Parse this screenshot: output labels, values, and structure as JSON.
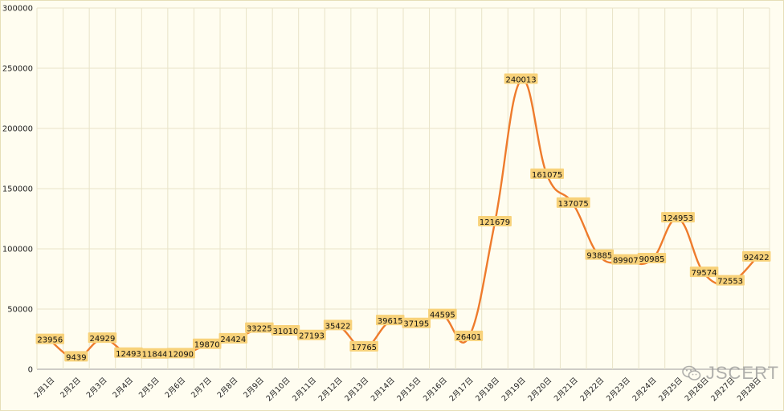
{
  "chart_data": {
    "type": "line",
    "title": "",
    "xlabel": "",
    "ylabel": "",
    "categories": [
      "2月1日",
      "2月2日",
      "2月3日",
      "2月4日",
      "2月5日",
      "2月6日",
      "2月7日",
      "2月8日",
      "2月9日",
      "2月10日",
      "2月11日",
      "2月12日",
      "2月13日",
      "2月14日",
      "2月15日",
      "2月16日",
      "2月17日",
      "2月18日",
      "2月19日",
      "2月20日",
      "2月21日",
      "2月22日",
      "2月23日",
      "2月24日",
      "2月25日",
      "2月26日",
      "2月27日",
      "2月28日"
    ],
    "series": [
      {
        "values": [
          23956,
          9439,
          24929,
          12493,
          11844,
          12090,
          19870,
          24424,
          33225,
          31010,
          27193,
          35422,
          17765,
          39615,
          37195,
          44595,
          26401,
          121679,
          240013,
          161075,
          137075,
          93885,
          89907,
          90985,
          124953,
          79574,
          72553,
          92422
        ],
        "color": "#ee7b2c"
      }
    ],
    "ylim": [
      0,
      300000
    ],
    "yticks": [
      0,
      50000,
      100000,
      150000,
      200000,
      250000,
      300000
    ],
    "grid": true,
    "legend": "none",
    "smooth": true,
    "data_labels": true,
    "colors": {
      "background": "#fffdf0",
      "grid": "#e8e3c8",
      "line": "#ee7b2c",
      "label_bg": "#f8d27a"
    }
  },
  "watermark": {
    "text": "JSCERT",
    "icon": "wechat-icon"
  }
}
